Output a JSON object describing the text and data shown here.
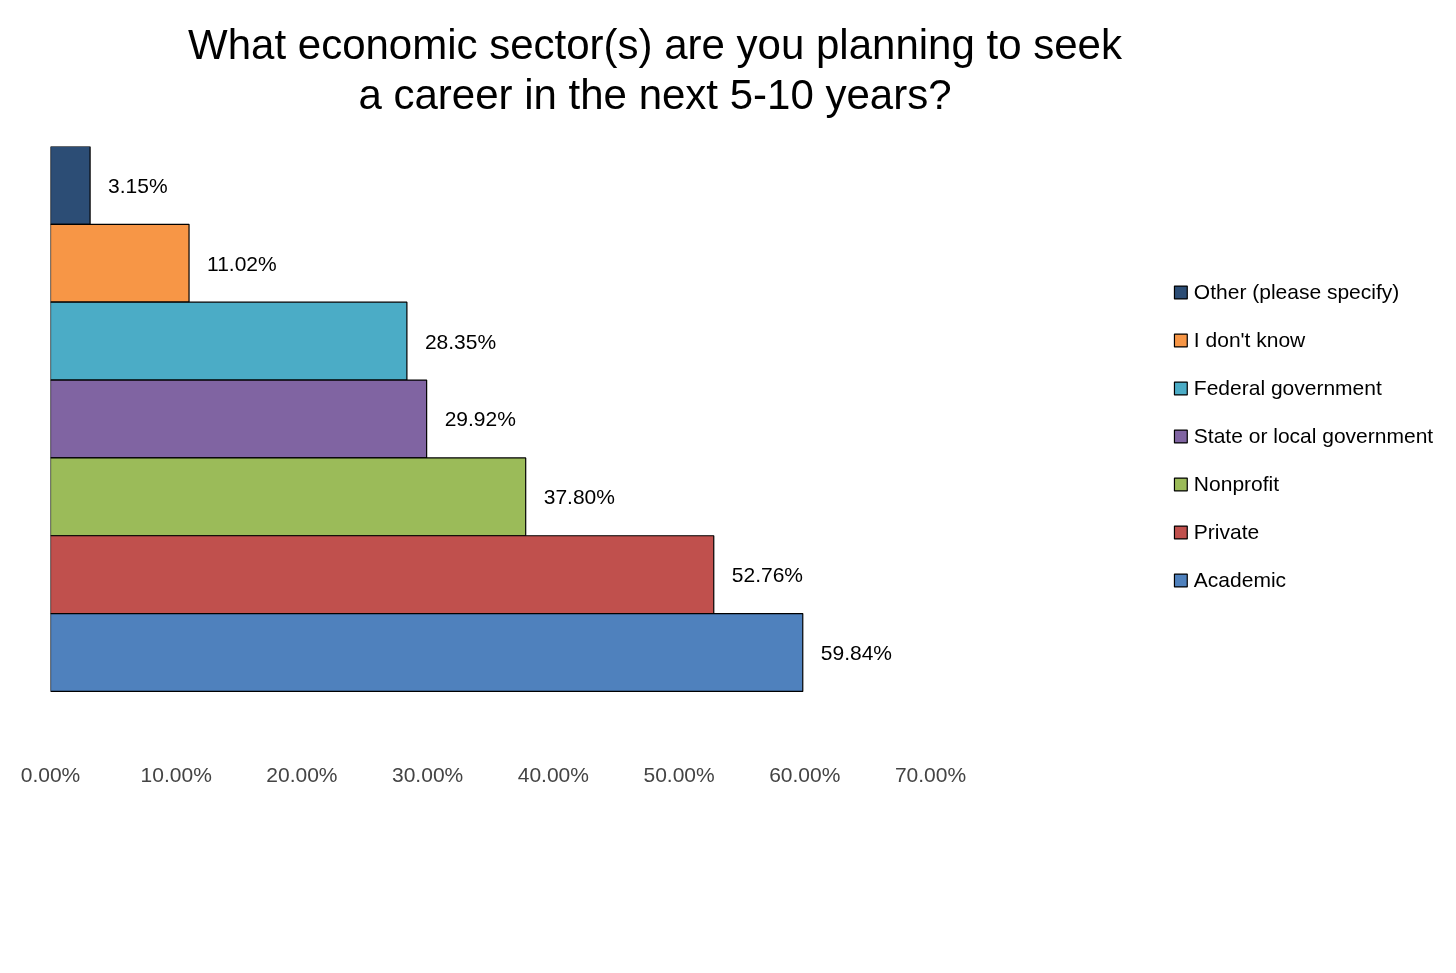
{
  "chart_data": {
    "type": "bar",
    "orientation": "horizontal",
    "title": "What economic sector(s) are you planning to seek\na career in the next 5-10 years?",
    "categories": [
      null,
      null,
      null,
      null,
      null,
      null,
      null
    ],
    "series": [
      {
        "name": "Other (please specify)",
        "color": "#2c4d75",
        "values": [
          3.15,
          null,
          null,
          null,
          null,
          null,
          null
        ],
        "value_labels": [
          "3.15%",
          null,
          null,
          null,
          null,
          null,
          null
        ]
      },
      {
        "name": "I don't know",
        "color": "#f79646",
        "values": [
          null,
          11.02,
          null,
          null,
          null,
          null,
          null
        ],
        "value_labels": [
          null,
          "11.02%",
          null,
          null,
          null,
          null,
          null
        ]
      },
      {
        "name": "Federal government",
        "color": "#4bacc6",
        "values": [
          null,
          null,
          28.35,
          null,
          null,
          null,
          null
        ],
        "value_labels": [
          null,
          null,
          "28.35%",
          null,
          null,
          null,
          null
        ]
      },
      {
        "name": "State or local government",
        "color": "#8064a2",
        "values": [
          null,
          null,
          null,
          29.92,
          null,
          null,
          null
        ],
        "value_labels": [
          null,
          null,
          null,
          "29.92%",
          null,
          null,
          null
        ]
      },
      {
        "name": "Nonprofit",
        "color": "#9bbb59",
        "values": [
          null,
          null,
          null,
          null,
          37.8,
          null,
          null
        ],
        "value_labels": [
          null,
          null,
          null,
          null,
          "37.80%",
          null,
          null
        ]
      },
      {
        "name": "Private",
        "color": "#c0504d",
        "values": [
          null,
          null,
          null,
          null,
          null,
          52.76,
          null
        ],
        "value_labels": [
          null,
          null,
          null,
          null,
          null,
          "52.76%",
          null
        ]
      },
      {
        "name": "Academic",
        "color": "#4f81bd",
        "values": [
          null,
          null,
          null,
          null,
          null,
          null,
          59.84
        ],
        "value_labels": [
          null,
          null,
          null,
          null,
          null,
          null,
          "59.84%"
        ]
      }
    ],
    "xlim": [
      0,
      70
    ],
    "xticks": [
      {
        "value": 0,
        "label": "0.00%"
      },
      {
        "value": 10,
        "label": "10.00%"
      },
      {
        "value": 20,
        "label": "20.00%"
      },
      {
        "value": 30,
        "label": "30.00%"
      },
      {
        "value": 40,
        "label": "40.00%"
      },
      {
        "value": 50,
        "label": "50.00%"
      },
      {
        "value": 60,
        "label": "60.00%"
      },
      {
        "value": 70,
        "label": "70.00%"
      }
    ],
    "tick_labels": "x",
    "stacked": true,
    "legend": "right",
    "grid": false
  }
}
